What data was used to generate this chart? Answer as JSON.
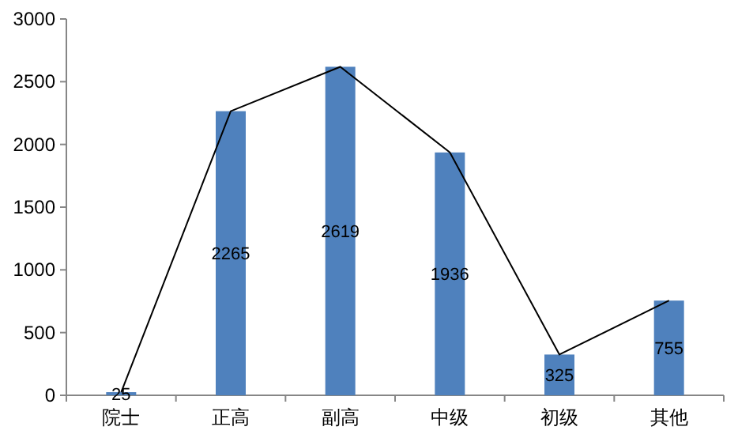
{
  "chart_data": {
    "type": "bar",
    "categories": [
      "院士",
      "正高",
      "副高",
      "中级",
      "初级",
      "其他"
    ],
    "series": [
      {
        "color": "#4f81bd",
        "values": [
          25,
          2265,
          2619,
          1936,
          325,
          755
        ],
        "value_labels": [
          "25",
          "2265",
          "2619",
          "1936",
          "325",
          "755"
        ]
      },
      {
        "type": "line",
        "color": "#000000",
        "values": [
          25,
          2265,
          2619,
          1936,
          325,
          755
        ]
      }
    ],
    "ylim": [
      0,
      3000
    ],
    "yticks": [
      0,
      500,
      1000,
      1500,
      2000,
      2500,
      3000
    ],
    "grid": false
  }
}
